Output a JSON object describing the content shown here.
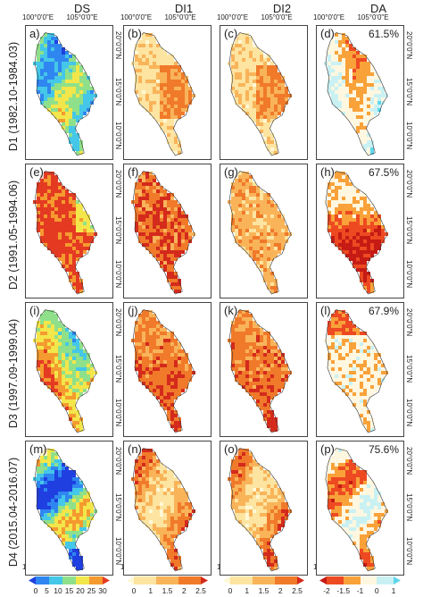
{
  "columns": [
    "DS",
    "DI1",
    "DI2",
    "DA"
  ],
  "rows": [
    {
      "label": "D1 (1982.10-1984.03)",
      "panels": [
        "a)",
        "(b)",
        "(c)",
        "(d)"
      ],
      "pct": "61.5%"
    },
    {
      "label": "D2 (1991.05-1994.06)",
      "panels": [
        "(e)",
        "(f)",
        "(g)",
        "(h)"
      ],
      "pct": "67.5%"
    },
    {
      "label": "D3 (1997.09-1999.04)",
      "panels": [
        "(i)",
        "(j)",
        "(k)",
        "(l)"
      ],
      "pct": "67.9%"
    },
    {
      "label": "D4 (2015.04-2016.07)",
      "panels": [
        "(m)",
        "(n)",
        "(o)",
        "(p)"
      ],
      "pct": "75.6%"
    }
  ],
  "lon_labels": [
    "100°0'0\"E",
    "105°0'0\"E"
  ],
  "lat_labels": [
    "20°0'0\"N",
    "15°0'0\"N",
    "10°0'0\"N"
  ],
  "colorbars": [
    {
      "ticks": [
        "0",
        "5",
        "10",
        "15",
        "20",
        "25",
        "30"
      ],
      "colors": [
        "#1f3fe0",
        "#2f86f0",
        "#44c7e8",
        "#8fe08a",
        "#f3e64a",
        "#f59a2f",
        "#e43a22"
      ]
    },
    {
      "ticks": [
        "0",
        "1",
        "1.5",
        "2",
        "2.5"
      ],
      "colors": [
        "#fff8d6",
        "#fde4a0",
        "#f9b45a",
        "#f07a2a",
        "#d42a1c"
      ]
    },
    {
      "ticks": [
        "0",
        "1",
        "1.5",
        "2",
        "2.5"
      ],
      "colors": [
        "#fff8d6",
        "#fde4a0",
        "#f9b45a",
        "#f07a2a",
        "#d42a1c"
      ]
    },
    {
      "ticks": [
        "-2",
        "-1.5",
        "-1",
        "0",
        "1"
      ],
      "colors": [
        "#c51b14",
        "#ee4a22",
        "#f9a23a",
        "#fff7e0",
        "#c9f1f4",
        "#5fd6ec"
      ]
    }
  ]
}
